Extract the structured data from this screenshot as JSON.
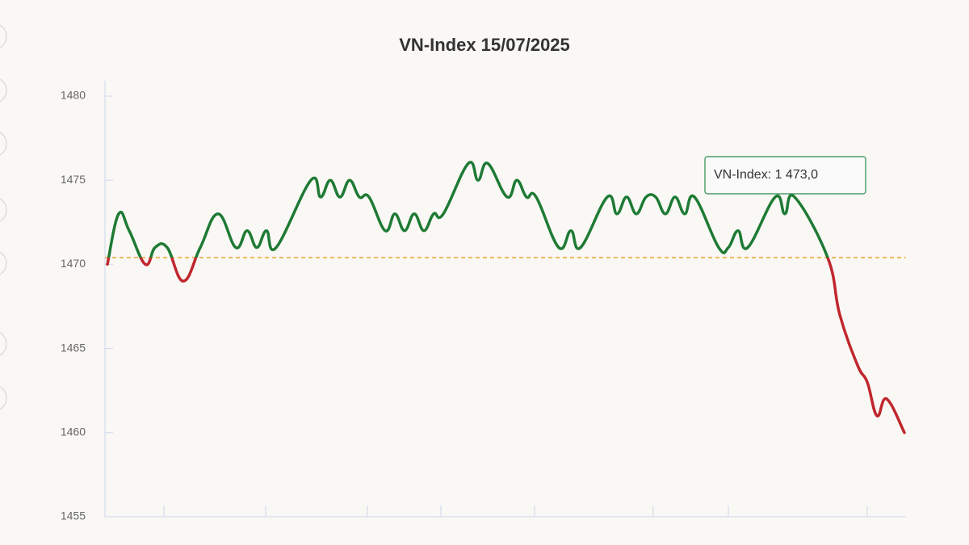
{
  "chart_data": {
    "type": "line",
    "title": "VN-Index 15/07/2025",
    "tooltip": "VN-Index: 1 473,0",
    "reference_line": 1470.4,
    "x": [
      3,
      17,
      30,
      50,
      62,
      77,
      97,
      118,
      140,
      162,
      176,
      188,
      200,
      212,
      255,
      267,
      279,
      291,
      303,
      315,
      327,
      347,
      359,
      371,
      383,
      395,
      407,
      419,
      450,
      462,
      474,
      498,
      510,
      522,
      534,
      562,
      577,
      589,
      622,
      634,
      646,
      658,
      670,
      682,
      694,
      706,
      718,
      730,
      760,
      772,
      784,
      796,
      830,
      842,
      854,
      895,
      910,
      932,
      944,
      956,
      968,
      990
    ],
    "series": [
      {
        "name": "VN-Index",
        "color_up": "#1e7a34",
        "color_down": "#c0272d",
        "values": [
          1470,
          1473,
          1472,
          1470,
          1471,
          1471,
          1469,
          1471,
          1473,
          1471,
          1472,
          1471,
          1472,
          1471,
          1475,
          1474,
          1475,
          1474,
          1475,
          1474,
          1474,
          1472,
          1473,
          1472,
          1473,
          1472,
          1473,
          1473,
          1476,
          1475,
          1476,
          1474,
          1475,
          1474,
          1474,
          1471,
          1472,
          1471,
          1474,
          1473,
          1474,
          1473,
          1474,
          1474,
          1473,
          1474,
          1473,
          1474,
          1471,
          1471,
          1472,
          1471,
          1474,
          1473,
          1474,
          1470.4,
          1467,
          1464,
          1463,
          1461,
          1462,
          1460
        ]
      }
    ],
    "xlim": [
      0,
      992
    ],
    "xticks": [
      73,
      199,
      325,
      416,
      532,
      679,
      772,
      944
    ],
    "ylim": [
      1455,
      1480
    ],
    "yticks": [
      1455,
      1460,
      1465,
      1470,
      1475,
      1480
    ]
  }
}
